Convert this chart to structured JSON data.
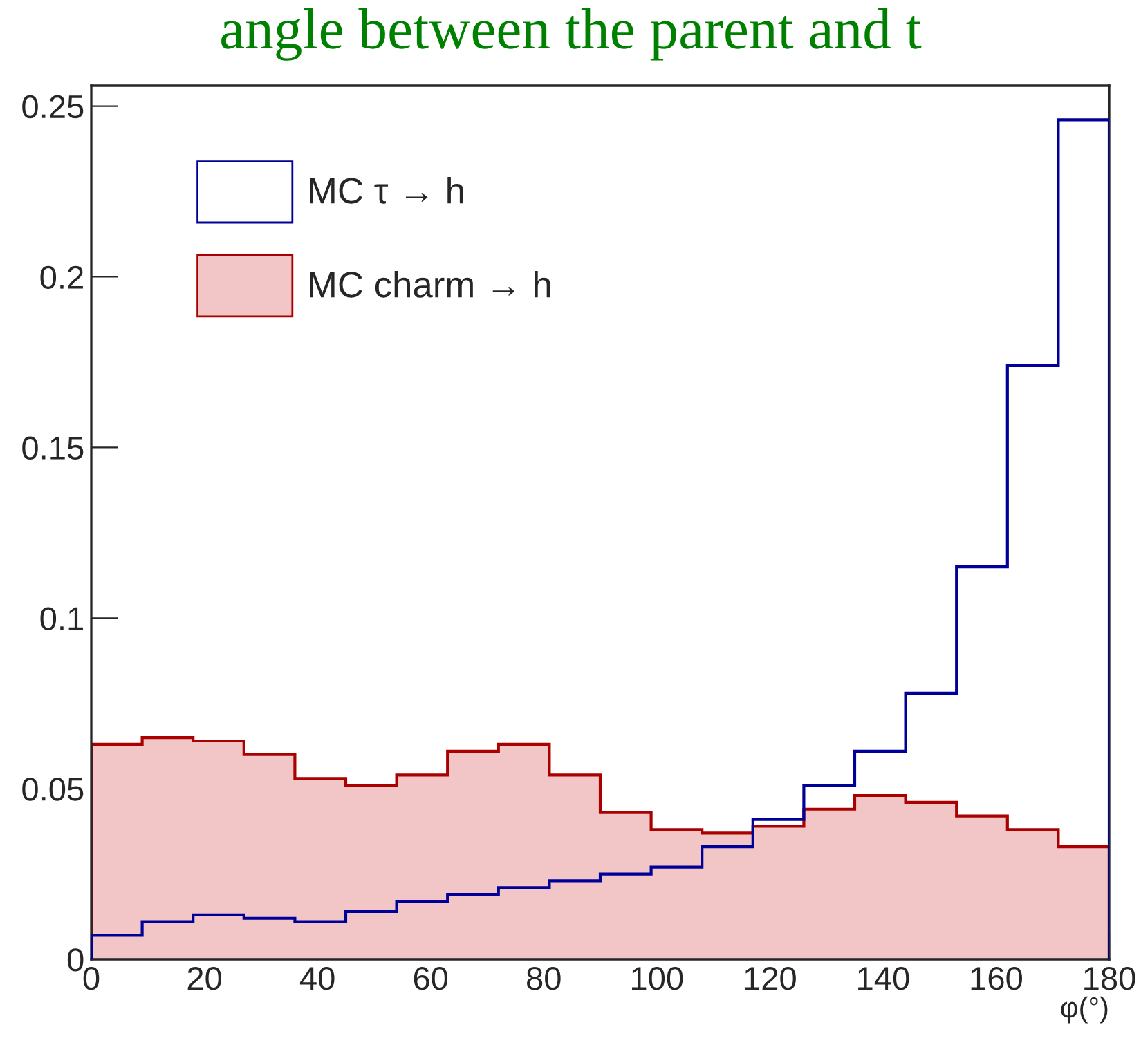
{
  "chart_data": {
    "type": "histogram",
    "title": "angle between the parent and t",
    "xlabel": "φ(°)",
    "bins": [
      0,
      9,
      18,
      27,
      36,
      45,
      54,
      63,
      72,
      81,
      90,
      99,
      108,
      117,
      126,
      135,
      144,
      153,
      162,
      171,
      180
    ],
    "series": [
      {
        "name": "MC τ → h",
        "color": "#000099",
        "values": [
          0.007,
          0.011,
          0.013,
          0.012,
          0.011,
          0.014,
          0.017,
          0.019,
          0.021,
          0.023,
          0.025,
          0.027,
          0.033,
          0.041,
          0.051,
          0.061,
          0.078,
          0.115,
          0.174,
          0.246
        ]
      },
      {
        "name": "MC charm → h",
        "color": "#aa0000",
        "values": [
          0.063,
          0.065,
          0.064,
          0.06,
          0.053,
          0.051,
          0.054,
          0.061,
          0.063,
          0.054,
          0.043,
          0.038,
          0.037,
          0.039,
          0.044,
          0.048,
          0.046,
          0.042,
          0.038,
          0.033
        ]
      }
    ],
    "xlim": [
      0,
      180
    ],
    "xticks": [
      0,
      20,
      40,
      60,
      80,
      100,
      120,
      140,
      160,
      180
    ],
    "ylim": [
      0,
      0.256
    ],
    "yticks": [
      0,
      0.05,
      0.1,
      0.15,
      0.2,
      0.25
    ],
    "legend": "top left",
    "grid": false
  }
}
